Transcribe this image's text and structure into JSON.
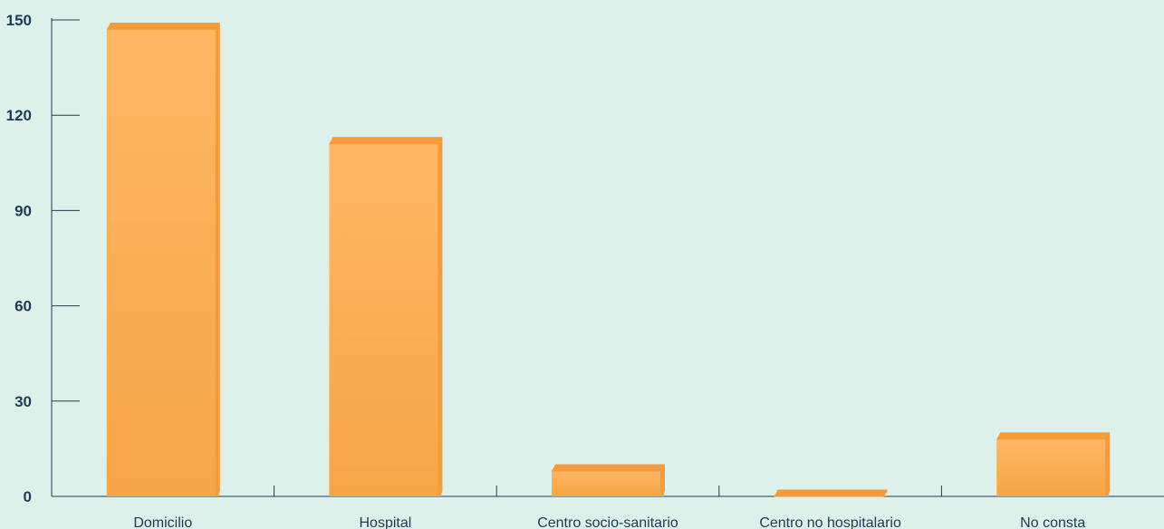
{
  "chart_data": {
    "type": "bar",
    "categories": [
      "Domicilio",
      "Hospital",
      "Centro socio-sanitario",
      "Centro no hospitalario",
      "No consta"
    ],
    "values": [
      148,
      112,
      9,
      1,
      19
    ],
    "ylim": [
      0,
      150
    ],
    "yticks": [
      0,
      30,
      60,
      90,
      120,
      150
    ],
    "title": "",
    "xlabel": "",
    "ylabel": "",
    "grid": false,
    "legend": "none",
    "colors": {
      "bar_top": "#ffb765",
      "bar_bottom": "#f6a647",
      "bar_edge": "#f39c3c",
      "axis": "#1f3b57",
      "background": "#ddf0ea"
    }
  }
}
